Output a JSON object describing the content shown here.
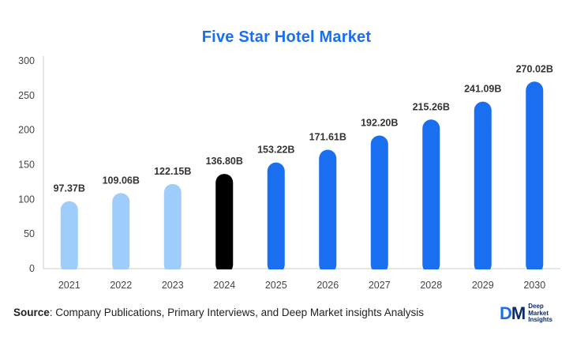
{
  "chart_data": {
    "type": "bar",
    "title": "Five Star Hotel Market",
    "categories": [
      "2021",
      "2022",
      "2023",
      "2024",
      "2025",
      "2026",
      "2027",
      "2028",
      "2029",
      "2030"
    ],
    "values": [
      97.37,
      109.06,
      122.15,
      136.8,
      153.22,
      171.61,
      192.2,
      215.26,
      241.09,
      270.02
    ],
    "data_labels": [
      "97.37B",
      "109.06B",
      "122.15B",
      "136.80B",
      "153.22B",
      "171.61B",
      "192.20B",
      "215.26B",
      "241.09B",
      "270.02B"
    ],
    "bar_colors": [
      "#9fcdfb",
      "#9fcdfb",
      "#9fcdfb",
      "#000000",
      "#1a6ef0",
      "#1a6ef0",
      "#1a6ef0",
      "#1a6ef0",
      "#1a6ef0",
      "#1a6ef0"
    ],
    "ylim": [
      0,
      300
    ],
    "yticks": [
      "0",
      "50",
      "100",
      "150",
      "200",
      "250",
      "300"
    ],
    "xlabel": "",
    "ylabel": "",
    "grid": false
  },
  "source": {
    "label": "Source",
    "text": ": Company Publications, Primary Interviews, and Deep Market insights Analysis"
  },
  "logo": {
    "mark_d": "D",
    "mark_m": "M",
    "line1": "Deep",
    "line2": "Market",
    "line3": "Insights"
  },
  "colors": {
    "title": "#1a6ef0",
    "axis": "#cccccc"
  }
}
